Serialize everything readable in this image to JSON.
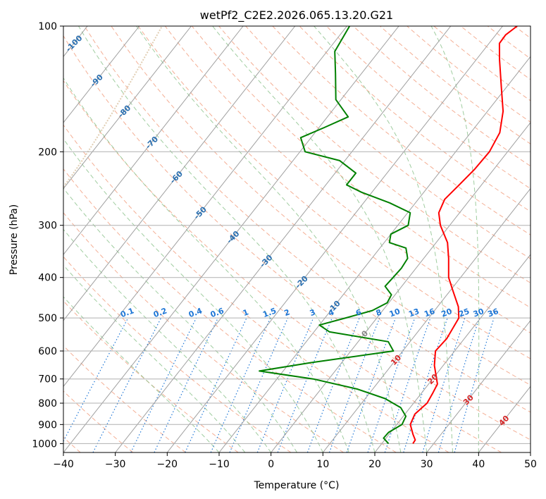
{
  "chart_data": {
    "type": "line",
    "diagram": "skew-T log-P",
    "title": "wetPf2_C2E2.2026.065.13.20.G21",
    "xlabel": "Temperature (°C)",
    "ylabel": "Pressure (hPa)",
    "xlim": [
      -40,
      50
    ],
    "ylim": [
      1050,
      100
    ],
    "y_scale": "log",
    "grid": true,
    "x_ticks": [
      -40,
      -30,
      -20,
      -10,
      0,
      10,
      20,
      30,
      40,
      50
    ],
    "y_ticks": [
      100,
      200,
      300,
      400,
      500,
      600,
      700,
      800,
      900,
      1000
    ],
    "series": [
      {
        "color": "#ff0000",
        "points": [
          [
            1000,
            26.0
          ],
          [
            980,
            25.9
          ],
          [
            950,
            24.6
          ],
          [
            900,
            22.6
          ],
          [
            850,
            21.9
          ],
          [
            800,
            22.6
          ],
          [
            760,
            22.2
          ],
          [
            720,
            21.7
          ],
          [
            650,
            18.3
          ],
          [
            600,
            16.3
          ],
          [
            560,
            16.6
          ],
          [
            500,
            15.8
          ],
          [
            470,
            14.0
          ],
          [
            430,
            10.5
          ],
          [
            400,
            7.7
          ],
          [
            360,
            4.8
          ],
          [
            330,
            2.2
          ],
          [
            300,
            -1.8
          ],
          [
            280,
            -4.0
          ],
          [
            260,
            -4.9
          ],
          [
            240,
            -4.3
          ],
          [
            220,
            -3.7
          ],
          [
            200,
            -3.5
          ],
          [
            180,
            -4.4
          ],
          [
            160,
            -7.0
          ],
          [
            140,
            -11.0
          ],
          [
            120,
            -15.6
          ],
          [
            110,
            -18.0
          ],
          [
            105,
            -18.1
          ],
          [
            100,
            -17.2
          ]
        ]
      },
      {
        "color": "#008000",
        "points": [
          [
            1000,
            21.3
          ],
          [
            970,
            19.5
          ],
          [
            940,
            19.6
          ],
          [
            900,
            21.0
          ],
          [
            860,
            20.5
          ],
          [
            820,
            18.2
          ],
          [
            780,
            13.8
          ],
          [
            740,
            7.0
          ],
          [
            700,
            -3.0
          ],
          [
            670,
            -14.6
          ],
          [
            640,
            -6.0
          ],
          [
            600,
            8.2
          ],
          [
            570,
            5.8
          ],
          [
            540,
            -7.0
          ],
          [
            520,
            -10.0
          ],
          [
            500,
            -6.0
          ],
          [
            480,
            -2.0
          ],
          [
            460,
            -0.3
          ],
          [
            440,
            -0.7
          ],
          [
            420,
            -3.2
          ],
          [
            400,
            -3.0
          ],
          [
            380,
            -2.8
          ],
          [
            360,
            -3.1
          ],
          [
            340,
            -5.0
          ],
          [
            330,
            -9.0
          ],
          [
            315,
            -10.0
          ],
          [
            300,
            -8.0
          ],
          [
            280,
            -9.5
          ],
          [
            265,
            -15.0
          ],
          [
            250,
            -22.0
          ],
          [
            240,
            -26.0
          ],
          [
            225,
            -26.0
          ],
          [
            210,
            -31.0
          ],
          [
            200,
            -39.0
          ],
          [
            185,
            -42.0
          ],
          [
            175,
            -39.0
          ],
          [
            165,
            -36.0
          ],
          [
            150,
            -41.0
          ],
          [
            130,
            -45.0
          ],
          [
            115,
            -48.5
          ],
          [
            100,
            -49.5
          ]
        ]
      }
    ],
    "isotherm_labels": [
      "-100",
      "-90",
      "-80",
      "-70",
      "-60",
      "-50",
      "-40",
      "-30",
      "-20",
      "-10",
      "0",
      "10",
      "20",
      "30",
      "40"
    ],
    "mixing_ratio_labels": [
      "0.1",
      "0.2",
      "0.4",
      "0.6",
      "1",
      "1.5",
      "2",
      "3",
      "4",
      "6",
      "8",
      "10",
      "13",
      "16",
      "20",
      "25",
      "30",
      "36"
    ]
  },
  "colors": {
    "temperature": "#ff0000",
    "dewpoint": "#008000",
    "isotherm_grid": "#a0a0a0",
    "pressure_grid": "#b0b0b0",
    "dry_adiabat": "#f2a183",
    "moist_adiabat": "#8fc48f",
    "mixing_ratio": "#1f77d6",
    "isotherm_label_cold": "#2a6fb0",
    "isotherm_label_zero": "#888888",
    "isotherm_label_warm": "#d62728",
    "lcl_arc": "#d9c2a0"
  }
}
